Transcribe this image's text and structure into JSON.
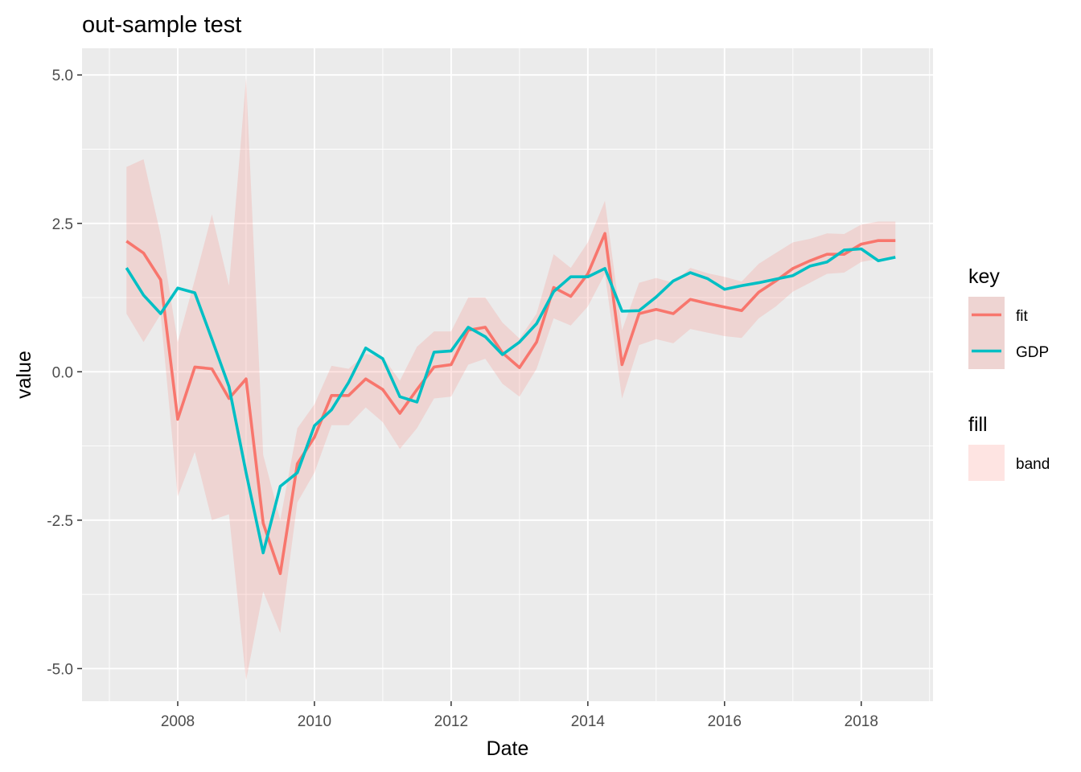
{
  "chart_data": {
    "type": "line",
    "title": "out-sample test",
    "xlabel": "Date",
    "ylabel": "value",
    "xlim": [
      2006.6,
      2019.05
    ],
    "ylim": [
      -5.55,
      5.45
    ],
    "x_ticks": [
      2008,
      2010,
      2012,
      2014,
      2016,
      2018
    ],
    "x_tick_labels": [
      "2008",
      "2010",
      "2012",
      "2014",
      "2016",
      "2018"
    ],
    "y_ticks": [
      -5.0,
      -2.5,
      0.0,
      2.5,
      5.0
    ],
    "y_tick_labels": [
      "-5.0",
      "-2.5",
      "0.0",
      "2.5",
      "5.0"
    ],
    "grid": true,
    "legend_position": "right",
    "x": [
      2007.25,
      2007.5,
      2007.75,
      2008.0,
      2008.25,
      2008.5,
      2008.75,
      2009.0,
      2009.25,
      2009.5,
      2009.75,
      2010.0,
      2010.25,
      2010.5,
      2010.75,
      2011.0,
      2011.25,
      2011.5,
      2011.75,
      2012.0,
      2012.25,
      2012.5,
      2012.75,
      2013.0,
      2013.25,
      2013.5,
      2013.75,
      2014.0,
      2014.25,
      2014.5,
      2014.75,
      2015.0,
      2015.25,
      2015.5,
      2015.75,
      2016.0,
      2016.25,
      2016.5,
      2016.75,
      2017.0,
      2017.25,
      2017.5,
      2017.75,
      2018.0,
      2018.25,
      2018.5
    ],
    "series": [
      {
        "name": "fit",
        "color": "#F8766D",
        "values": [
          2.2,
          2.0,
          1.55,
          -0.8,
          0.08,
          0.05,
          -0.45,
          -0.12,
          -2.55,
          -3.4,
          -1.55,
          -1.1,
          -0.4,
          -0.4,
          -0.12,
          -0.3,
          -0.7,
          -0.3,
          0.08,
          0.12,
          0.7,
          0.75,
          0.32,
          0.07,
          0.5,
          1.42,
          1.27,
          1.65,
          2.33,
          0.12,
          0.98,
          1.05,
          0.98,
          1.22,
          1.15,
          1.09,
          1.03,
          1.34,
          1.53,
          1.74,
          1.87,
          1.98,
          1.98,
          2.15,
          2.21,
          2.21
        ]
      },
      {
        "name": "GDP",
        "color": "#00BFC4",
        "values": [
          1.75,
          1.29,
          0.98,
          1.41,
          1.33,
          0.55,
          -0.25,
          -1.7,
          -3.05,
          -1.93,
          -1.7,
          -0.91,
          -0.64,
          -0.18,
          0.4,
          0.22,
          -0.42,
          -0.51,
          0.33,
          0.35,
          0.75,
          0.59,
          0.29,
          0.5,
          0.81,
          1.35,
          1.6,
          1.6,
          1.74,
          1.02,
          1.03,
          1.26,
          1.53,
          1.67,
          1.57,
          1.39,
          1.45,
          1.5,
          1.56,
          1.62,
          1.78,
          1.85,
          2.05,
          2.07,
          1.87,
          1.93
        ]
      }
    ],
    "band": {
      "name": "band",
      "color": "#F8766D",
      "opacity": 0.2,
      "lower": [
        0.98,
        0.5,
        0.97,
        -2.1,
        -1.35,
        -2.5,
        -2.4,
        -5.2,
        -3.7,
        -4.4,
        -2.2,
        -1.7,
        -0.9,
        -0.9,
        -0.6,
        -0.85,
        -1.3,
        -0.95,
        -0.45,
        -0.42,
        0.12,
        0.22,
        -0.2,
        -0.42,
        0.05,
        0.9,
        0.78,
        1.1,
        1.65,
        -0.45,
        0.45,
        0.55,
        0.48,
        0.72,
        0.66,
        0.6,
        0.57,
        0.9,
        1.1,
        1.35,
        1.5,
        1.65,
        1.67,
        1.85,
        1.9,
        1.93
      ],
      "upper": [
        3.45,
        3.58,
        2.3,
        0.5,
        1.55,
        2.65,
        1.45,
        4.95,
        -1.4,
        -2.5,
        -0.95,
        -0.55,
        0.1,
        0.05,
        0.3,
        0.25,
        -0.15,
        0.42,
        0.68,
        0.68,
        1.25,
        1.25,
        0.83,
        0.56,
        0.98,
        1.98,
        1.75,
        2.18,
        2.88,
        0.7,
        1.5,
        1.58,
        1.5,
        1.75,
        1.66,
        1.6,
        1.52,
        1.82,
        2.0,
        2.18,
        2.24,
        2.33,
        2.32,
        2.48,
        2.53,
        2.53
      ]
    },
    "legend": [
      {
        "title": "key",
        "items": [
          {
            "label": "fit",
            "color": "#F8766D"
          },
          {
            "label": "GDP",
            "color": "#00BFC4"
          }
        ]
      },
      {
        "title": "fill",
        "items": [
          {
            "label": "band",
            "color": "#F8766D"
          }
        ]
      }
    ]
  }
}
